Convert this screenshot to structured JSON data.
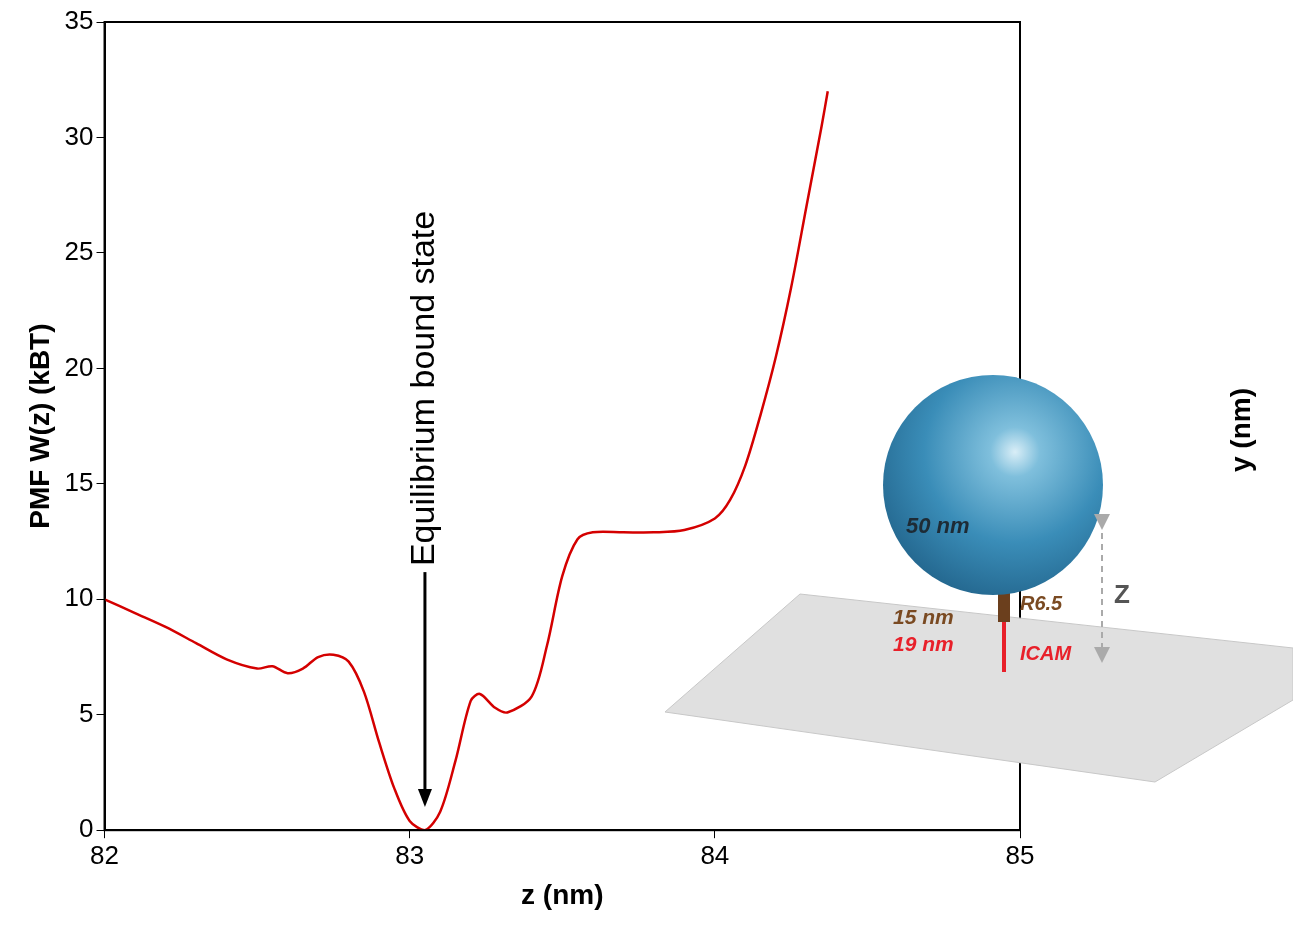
{
  "chart_data": {
    "type": "line",
    "x_label": "z (nm)",
    "y_label": "PMF W(z) (kBT)",
    "x": [
      82.0,
      82.1,
      82.2,
      82.3,
      82.4,
      82.5,
      82.55,
      82.6,
      82.65,
      82.7,
      82.75,
      82.8,
      82.85,
      82.9,
      82.95,
      83.0,
      83.05,
      83.1,
      83.15,
      83.2,
      83.23,
      83.28,
      83.32,
      83.4,
      83.45,
      83.5,
      83.55,
      83.6,
      83.7,
      83.8,
      83.9,
      84.0,
      84.05,
      84.1,
      84.15,
      84.2,
      84.25,
      84.3,
      84.35,
      84.37
    ],
    "values": [
      10.0,
      9.4,
      8.8,
      8.1,
      7.4,
      7.0,
      7.1,
      6.8,
      7.0,
      7.5,
      7.6,
      7.3,
      6.0,
      3.8,
      1.8,
      0.4,
      0.0,
      0.8,
      3.0,
      5.6,
      5.9,
      5.3,
      5.1,
      5.8,
      8.0,
      11.0,
      12.6,
      12.9,
      12.9,
      12.9,
      13.0,
      13.5,
      14.3,
      15.8,
      18.0,
      20.5,
      23.5,
      27.0,
      30.5,
      32.0
    ],
    "color": "#d40000",
    "xlim": [
      82,
      85
    ],
    "xticks": [
      82,
      83,
      84,
      85
    ],
    "ylim": [
      0,
      35
    ],
    "yticks": [
      0,
      5,
      10,
      15,
      20,
      25,
      30,
      35
    ],
    "grid": false,
    "annotations": [
      {
        "text": "Equilibrium bound state",
        "x": 83.05,
        "y": 1
      }
    ]
  },
  "inset": {
    "sphere_label": "50 nm",
    "linker_length": "15 nm",
    "linker_name": "R6.5",
    "ligand_length": "19 nm",
    "ligand_name": "ICAM",
    "distance_label": "Z"
  },
  "neighbor_panel": {
    "y_label": "y (nm)"
  }
}
